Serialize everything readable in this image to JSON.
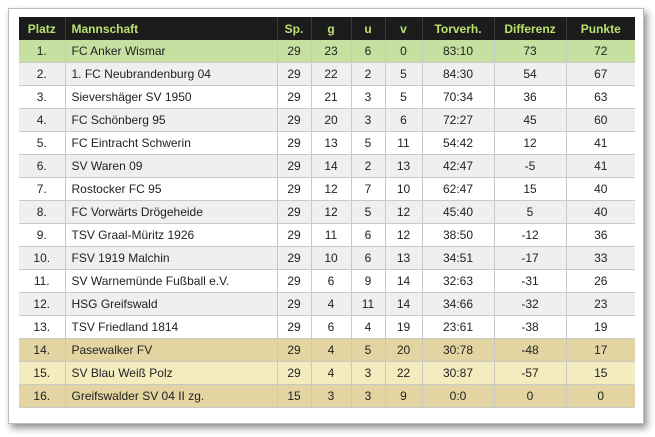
{
  "table": {
    "headers": {
      "place": "Platz",
      "team": "Mannschaft",
      "played": "Sp.",
      "won": "g",
      "drawn": "u",
      "lost": "v",
      "goals": "Torverh.",
      "diff": "Differenz",
      "points": "Punkte"
    },
    "colors": {
      "header_bg": "#1c1c1c",
      "header_text": "#b9e26f",
      "leader_row": "#c5e0a0",
      "relegation_row_dark": "#e3d5a1",
      "relegation_row_light": "#f4ebbf",
      "alt_row": "#efefef"
    },
    "rows": [
      {
        "place": "1.",
        "team": "FC Anker Wismar",
        "played": "29",
        "won": "23",
        "drawn": "6",
        "lost": "0",
        "goals": "83:10",
        "diff": "73",
        "points": "72"
      },
      {
        "place": "2.",
        "team": "1. FC Neubrandenburg 04",
        "played": "29",
        "won": "22",
        "drawn": "2",
        "lost": "5",
        "goals": "84:30",
        "diff": "54",
        "points": "67"
      },
      {
        "place": "3.",
        "team": "Sievershäger SV 1950",
        "played": "29",
        "won": "21",
        "drawn": "3",
        "lost": "5",
        "goals": "70:34",
        "diff": "36",
        "points": "63"
      },
      {
        "place": "4.",
        "team": "FC Schönberg 95",
        "played": "29",
        "won": "20",
        "drawn": "3",
        "lost": "6",
        "goals": "72:27",
        "diff": "45",
        "points": "60"
      },
      {
        "place": "5.",
        "team": "FC Eintracht Schwerin",
        "played": "29",
        "won": "13",
        "drawn": "5",
        "lost": "11",
        "goals": "54:42",
        "diff": "12",
        "points": "41"
      },
      {
        "place": "6.",
        "team": "SV Waren 09",
        "played": "29",
        "won": "14",
        "drawn": "2",
        "lost": "13",
        "goals": "42:47",
        "diff": "-5",
        "points": "41"
      },
      {
        "place": "7.",
        "team": "Rostocker FC 95",
        "played": "29",
        "won": "12",
        "drawn": "7",
        "lost": "10",
        "goals": "62:47",
        "diff": "15",
        "points": "40"
      },
      {
        "place": "8.",
        "team": "FC Vorwärts Drögeheide",
        "played": "29",
        "won": "12",
        "drawn": "5",
        "lost": "12",
        "goals": "45:40",
        "diff": "5",
        "points": "40"
      },
      {
        "place": "9.",
        "team": "TSV Graal-Müritz 1926",
        "played": "29",
        "won": "11",
        "drawn": "6",
        "lost": "12",
        "goals": "38:50",
        "diff": "-12",
        "points": "36"
      },
      {
        "place": "10.",
        "team": "FSV 1919 Malchin",
        "played": "29",
        "won": "10",
        "drawn": "6",
        "lost": "13",
        "goals": "34:51",
        "diff": "-17",
        "points": "33"
      },
      {
        "place": "11.",
        "team": "SV Warnemünde Fußball e.V.",
        "played": "29",
        "won": "6",
        "drawn": "9",
        "lost": "14",
        "goals": "32:63",
        "diff": "-31",
        "points": "26"
      },
      {
        "place": "12.",
        "team": "HSG Greifswald",
        "played": "29",
        "won": "4",
        "drawn": "11",
        "lost": "14",
        "goals": "34:66",
        "diff": "-32",
        "points": "23"
      },
      {
        "place": "13.",
        "team": "TSV Friedland 1814",
        "played": "29",
        "won": "6",
        "drawn": "4",
        "lost": "19",
        "goals": "23:61",
        "diff": "-38",
        "points": "19"
      },
      {
        "place": "14.",
        "team": "Pasewalker FV",
        "played": "29",
        "won": "4",
        "drawn": "5",
        "lost": "20",
        "goals": "30:78",
        "diff": "-48",
        "points": "17"
      },
      {
        "place": "15.",
        "team": "SV Blau Weiß Polz",
        "played": "29",
        "won": "4",
        "drawn": "3",
        "lost": "22",
        "goals": "30:87",
        "diff": "-57",
        "points": "15"
      },
      {
        "place": "16.",
        "team": "Greifswalder SV 04 II zg.",
        "played": "15",
        "won": "3",
        "drawn": "3",
        "lost": "9",
        "goals": "0:0",
        "diff": "0",
        "points": "0"
      }
    ]
  }
}
